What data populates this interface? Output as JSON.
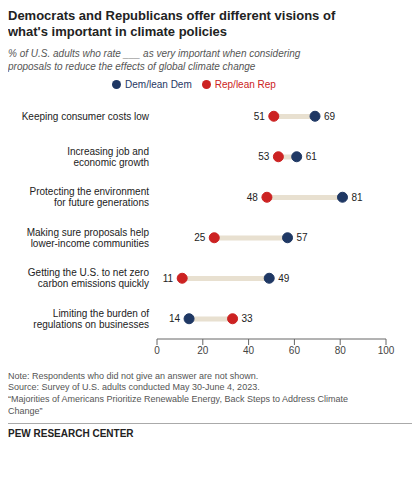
{
  "chart_data": {
    "type": "dumbbell",
    "title": "Democrats and Republicans offer different visions of\nwhat's important in climate policies",
    "subtitle": "% of U.S. adults who rate ___ as very important when considering\nproposals to reduce the effects of global climate change",
    "categories": [
      "Keeping consumer costs low",
      "Increasing job and\neconomic growth",
      "Protecting the environment\nfor future generations",
      "Making sure proposals help\nlower-income communities",
      "Getting the U.S. to net zero\ncarbon emissions quickly",
      "Limiting the burden of\nregulations on businesses"
    ],
    "series": [
      {
        "name": "Rep/lean Rep",
        "color": "#CC2222",
        "values": [
          51,
          53,
          48,
          25,
          11,
          33
        ]
      },
      {
        "name": "Dem/lean Dem",
        "color": "#1F3864",
        "values": [
          69,
          61,
          81,
          57,
          49,
          14
        ]
      }
    ],
    "xlim": [
      0,
      100
    ],
    "xticks": [
      0,
      20,
      40,
      60,
      80,
      100
    ],
    "orientation": "horizontal",
    "legend": "top",
    "grid": false,
    "data_labels": true,
    "color": "#E8E0D0",
    "annotations": [
      "Note: Respondents who did not give an answer are not shown.",
      "Source: Survey of U.S. adults conducted May 30-June 4, 2023.",
      "“Majorities of Americans Prioritize Renewable Energy, Back Steps to Address Climate",
      "Change”",
      "PEW RESEARCH CENTER"
    ]
  }
}
